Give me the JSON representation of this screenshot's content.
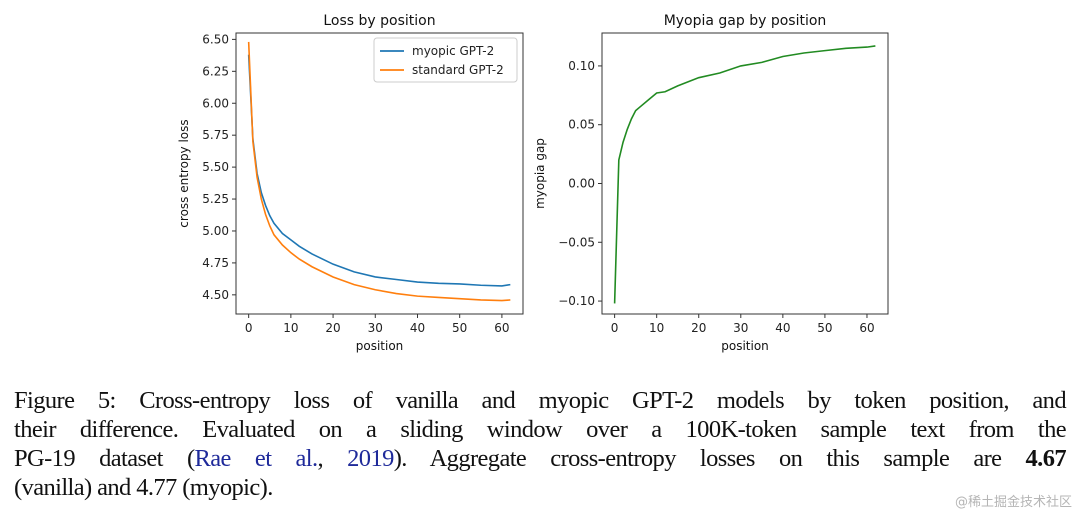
{
  "chart_data": [
    {
      "type": "line",
      "title": "Loss by position",
      "xlabel": "position",
      "ylabel": "cross entropy loss",
      "xlim": [
        -3,
        65
      ],
      "ylim": [
        4.35,
        6.55
      ],
      "xticks": [
        "0",
        "10",
        "20",
        "30",
        "40",
        "50",
        "60"
      ],
      "yticks": [
        "4.50",
        "4.75",
        "5.00",
        "5.25",
        "5.50",
        "5.75",
        "6.00",
        "6.25",
        "6.50"
      ],
      "grid": false,
      "legend_position": "top-right",
      "x": [
        0,
        1,
        2,
        3,
        4,
        5,
        6,
        8,
        10,
        12,
        15,
        20,
        25,
        30,
        35,
        40,
        45,
        50,
        55,
        60,
        62
      ],
      "series": [
        {
          "name": "myopic GPT-2",
          "color": "#1f77b4",
          "values": [
            6.38,
            5.72,
            5.45,
            5.3,
            5.2,
            5.12,
            5.06,
            4.98,
            4.93,
            4.88,
            4.82,
            4.74,
            4.68,
            4.64,
            4.62,
            4.6,
            4.59,
            4.585,
            4.575,
            4.57,
            4.58
          ]
        },
        {
          "name": "standard GPT-2",
          "color": "#ff7f0e",
          "values": [
            6.48,
            5.7,
            5.42,
            5.25,
            5.13,
            5.04,
            4.97,
            4.89,
            4.83,
            4.78,
            4.72,
            4.64,
            4.58,
            4.54,
            4.51,
            4.49,
            4.48,
            4.47,
            4.46,
            4.455,
            4.46
          ]
        }
      ]
    },
    {
      "type": "line",
      "title": "Myopia gap by position",
      "xlabel": "position",
      "ylabel": "myopia gap",
      "xlim": [
        -3,
        65
      ],
      "ylim": [
        -0.111,
        0.128
      ],
      "xticks": [
        "0",
        "10",
        "20",
        "30",
        "40",
        "50",
        "60"
      ],
      "yticks": [
        "−0.10",
        "−0.05",
        "0.00",
        "0.05",
        "0.10"
      ],
      "grid": false,
      "x": [
        0,
        1,
        2,
        3,
        4,
        5,
        6,
        8,
        10,
        12,
        15,
        20,
        25,
        30,
        35,
        40,
        45,
        50,
        55,
        60,
        62
      ],
      "series": [
        {
          "name": "myopia gap",
          "color": "#228b22",
          "values": [
            -0.102,
            0.02,
            0.035,
            0.046,
            0.055,
            0.062,
            0.065,
            0.071,
            0.077,
            0.078,
            0.083,
            0.09,
            0.094,
            0.1,
            0.103,
            0.108,
            0.111,
            0.113,
            0.115,
            0.116,
            0.117
          ]
        }
      ]
    }
  ],
  "caption": {
    "line1": "Figure 5: Cross-entropy loss of vanilla and myopic GPT-2 models by token position, and",
    "line2": "their difference. Evaluated on a sliding window over a 100K-token sample text from the",
    "line3_pre": "PG-19 dataset (",
    "line3_cite_authors": "Rae et al.",
    "line3_sep": ", ",
    "line3_cite_year": "2019",
    "line3_mid": ").  Aggregate cross-entropy losses on this sample are ",
    "line3_bold": "4.67",
    "line4": "(vanilla) and 4.77 (myopic)."
  },
  "watermark": "@稀土掘金技术社区"
}
